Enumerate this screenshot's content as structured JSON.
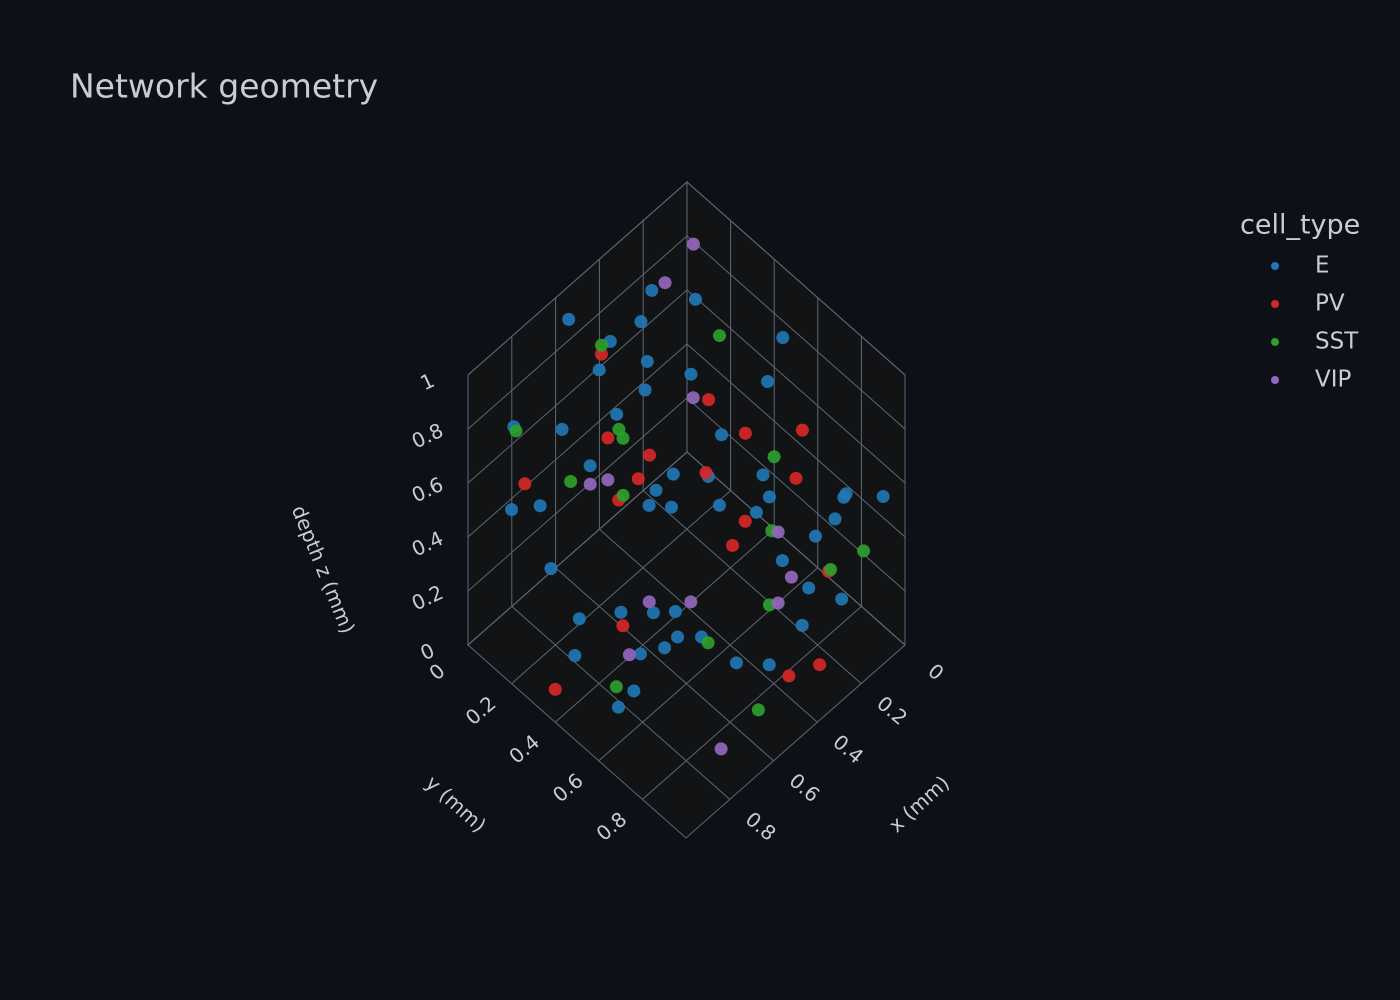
{
  "chart_data": {
    "type": "scatter3d",
    "title": "Network geometry",
    "legend_title": "cell_type",
    "xlabel": "x (mm)",
    "ylabel": "y (mm)",
    "zlabel": "depth z (mm)",
    "xlim": [
      0,
      1
    ],
    "ylim": [
      0,
      1
    ],
    "zlim": [
      0,
      1
    ],
    "xticks": [
      0,
      0.2,
      0.4,
      0.6,
      0.8
    ],
    "yticks": [
      0,
      0.2,
      0.4,
      0.6,
      0.8
    ],
    "zticks": [
      0,
      0.2,
      0.4,
      0.6,
      0.8,
      1
    ],
    "grid": true,
    "series": [
      {
        "name": "E",
        "color": "#1f77b4",
        "x": [
          0.12,
          0.85,
          0.43,
          0.67,
          0.29,
          0.91,
          0.55,
          0.08,
          0.76,
          0.34,
          0.62,
          0.19,
          0.48,
          0.97,
          0.25,
          0.71,
          0.39,
          0.83,
          0.05,
          0.58,
          0.14,
          0.66,
          0.92,
          0.31,
          0.47,
          0.79,
          0.22,
          0.53,
          0.88,
          0.36,
          0.61,
          0.03,
          0.74,
          0.42,
          0.17,
          0.95,
          0.27,
          0.69,
          0.51,
          0.81,
          0.11,
          0.45,
          0.73,
          0.33,
          0.57,
          0.89,
          0.21,
          0.64,
          0.38,
          0.99
        ],
        "y": [
          0.56,
          0.23,
          0.81,
          0.37,
          0.64,
          0.12,
          0.93,
          0.45,
          0.71,
          0.18,
          0.52,
          0.87,
          0.29,
          0.66,
          0.04,
          0.78,
          0.41,
          0.59,
          0.95,
          0.26,
          0.73,
          0.09,
          0.48,
          0.84,
          0.33,
          0.62,
          0.15,
          0.97,
          0.39,
          0.68,
          0.21,
          0.76,
          0.53,
          0.07,
          0.89,
          0.44,
          0.31,
          0.92,
          0.61,
          0.14,
          0.82,
          0.27,
          0.69,
          0.49,
          0.03,
          0.74,
          0.36,
          0.58,
          0.94,
          0.19
        ],
        "z": [
          0.91,
          0.34,
          0.72,
          0.15,
          0.58,
          0.83,
          0.27,
          0.64,
          0.46,
          0.97,
          0.09,
          0.51,
          0.78,
          0.22,
          0.69,
          0.38,
          0.86,
          0.13,
          0.55,
          0.74,
          0.31,
          0.62,
          0.95,
          0.18,
          0.43,
          0.81,
          0.06,
          0.67,
          0.29,
          0.52,
          0.89,
          0.41,
          0.16,
          0.76,
          0.59,
          0.24,
          0.98,
          0.37,
          0.71,
          0.48,
          0.12,
          0.85,
          0.33,
          0.65,
          0.92,
          0.57,
          0.21,
          0.79,
          0.44,
          0.63
        ]
      },
      {
        "name": "PV",
        "color": "#d62728",
        "x": [
          0.72,
          0.18,
          0.55,
          0.91,
          0.33,
          0.64,
          0.07,
          0.46,
          0.83,
          0.27,
          0.59,
          0.95,
          0.14,
          0.38,
          0.76,
          0.52,
          0.22,
          0.68
        ],
        "y": [
          0.41,
          0.83,
          0.16,
          0.62,
          0.94,
          0.28,
          0.57,
          0.73,
          0.09,
          0.48,
          0.86,
          0.35,
          0.67,
          0.21,
          0.54,
          0.99,
          0.32,
          0.77
        ],
        "z": [
          0.63,
          0.28,
          0.87,
          0.45,
          0.12,
          0.71,
          0.36,
          0.92,
          0.54,
          0.19,
          0.78,
          0.05,
          0.66,
          0.41,
          0.83,
          0.25,
          0.58,
          0.96
        ]
      },
      {
        "name": "SST",
        "color": "#2ca02c",
        "x": [
          0.36,
          0.81,
          0.12,
          0.58,
          0.93,
          0.24,
          0.67,
          0.45,
          0.04,
          0.76,
          0.31,
          0.88,
          0.53,
          0.19,
          0.71
        ],
        "y": [
          0.74,
          0.28,
          0.52,
          0.91,
          0.15,
          0.63,
          0.38,
          0.06,
          0.85,
          0.47,
          0.97,
          0.56,
          0.22,
          0.34,
          0.81
        ],
        "z": [
          0.22,
          0.67,
          0.44,
          0.11,
          0.85,
          0.33,
          0.59,
          0.76,
          0.27,
          0.93,
          0.48,
          0.16,
          0.62,
          0.81,
          0.38
        ]
      },
      {
        "name": "VIP",
        "color": "#9467bd",
        "x": [
          0.63,
          0.21,
          0.87,
          0.44,
          0.09,
          0.56,
          0.78,
          0.32,
          0.97,
          0.15,
          0.69,
          0.41
        ],
        "y": [
          0.27,
          0.69,
          0.43,
          0.86,
          0.12,
          0.58,
          0.94,
          0.35,
          0.71,
          0.05,
          0.52,
          0.83
        ],
        "z": [
          0.54,
          0.18,
          0.81,
          0.37,
          0.92,
          0.26,
          0.13,
          0.68,
          0.45,
          0.77,
          0.31,
          0.59
        ]
      }
    ]
  }
}
